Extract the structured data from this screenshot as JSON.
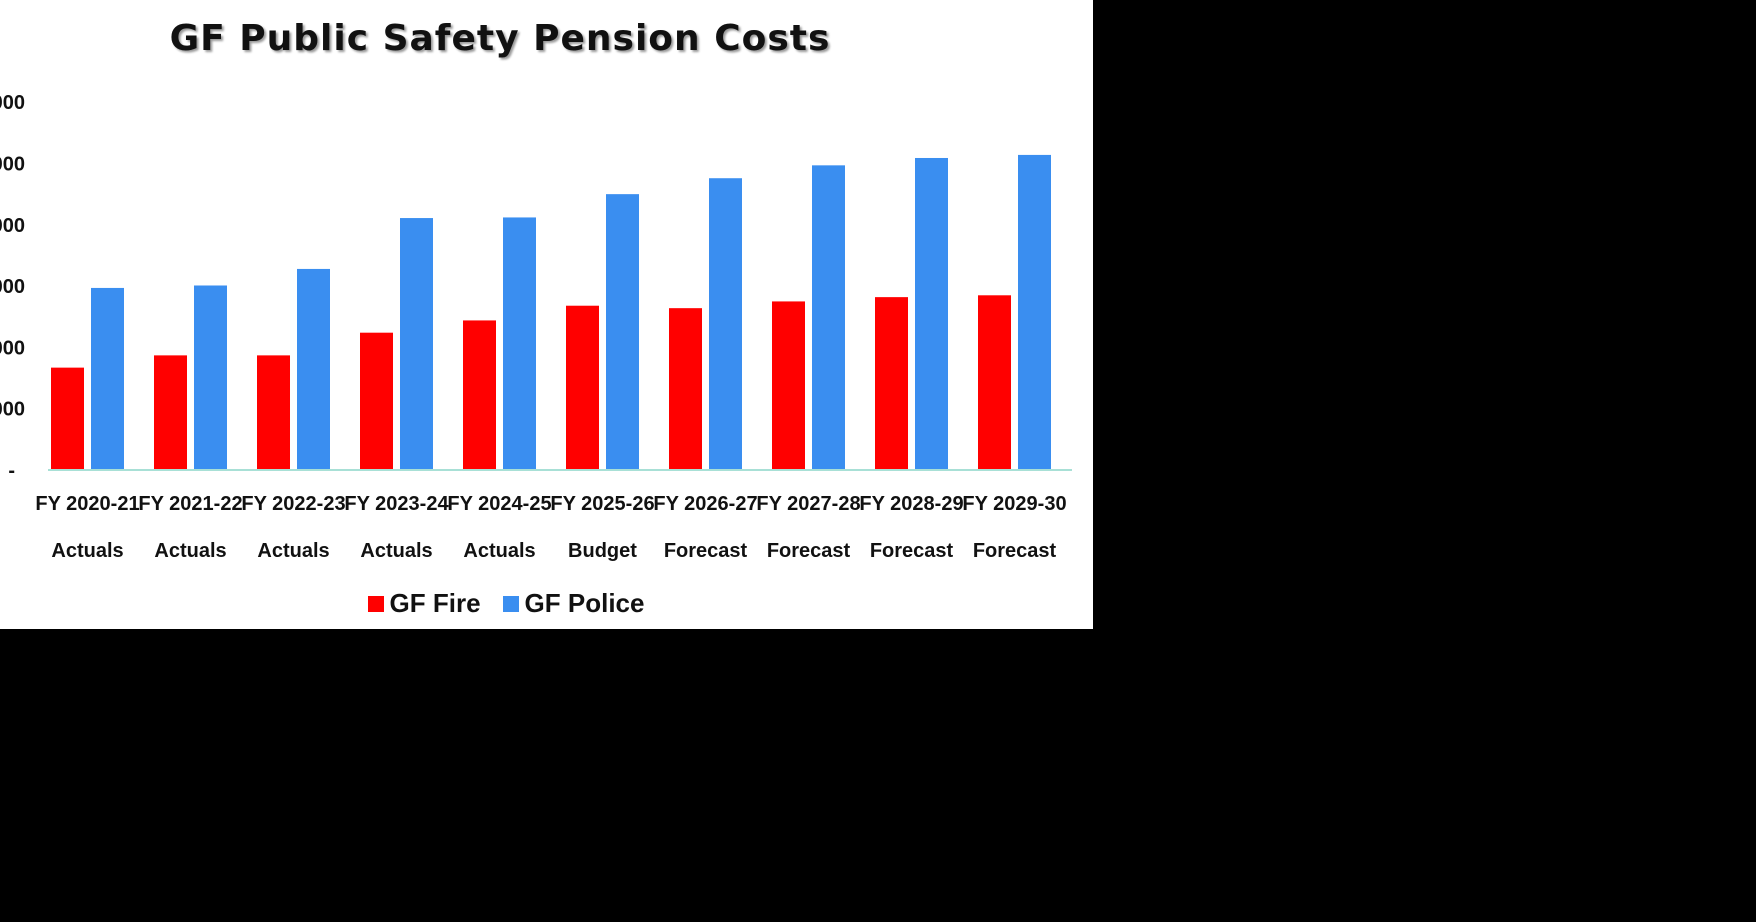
{
  "chart_data": {
    "type": "bar",
    "title": "GF Public Safety Pension Costs",
    "xlabel": "",
    "ylabel": "",
    "y_tick_labels": [
      "-",
      "000",
      "000",
      "000",
      "000",
      "000",
      "000"
    ],
    "ylim": [
      0,
      6
    ],
    "grid": false,
    "legend_position": "bottom",
    "categories": [
      {
        "year": "FY 2020-21",
        "kind": "Actuals"
      },
      {
        "year": "FY 2021-22",
        "kind": "Actuals"
      },
      {
        "year": "FY 2022-23",
        "kind": "Actuals"
      },
      {
        "year": "FY 2023-24",
        "kind": "Actuals"
      },
      {
        "year": "FY 2024-25",
        "kind": "Actuals"
      },
      {
        "year": "FY 2025-26",
        "kind": "Budget"
      },
      {
        "year": "FY 2026-27",
        "kind": "Forecast"
      },
      {
        "year": "FY 2027-28",
        "kind": "Forecast"
      },
      {
        "year": "FY 2028-29",
        "kind": "Forecast"
      },
      {
        "year": "FY 2029-30",
        "kind": "Forecast"
      }
    ],
    "series": [
      {
        "name": "GF Fire",
        "color": "#ff0000",
        "values": [
          1.67,
          1.87,
          1.87,
          2.24,
          2.44,
          2.68,
          2.64,
          2.75,
          2.82,
          2.85
        ]
      },
      {
        "name": "GF Police",
        "color": "#3a8ef0",
        "values": [
          2.97,
          3.01,
          3.28,
          4.11,
          4.12,
          4.5,
          4.76,
          4.97,
          5.09,
          5.14
        ]
      }
    ]
  }
}
